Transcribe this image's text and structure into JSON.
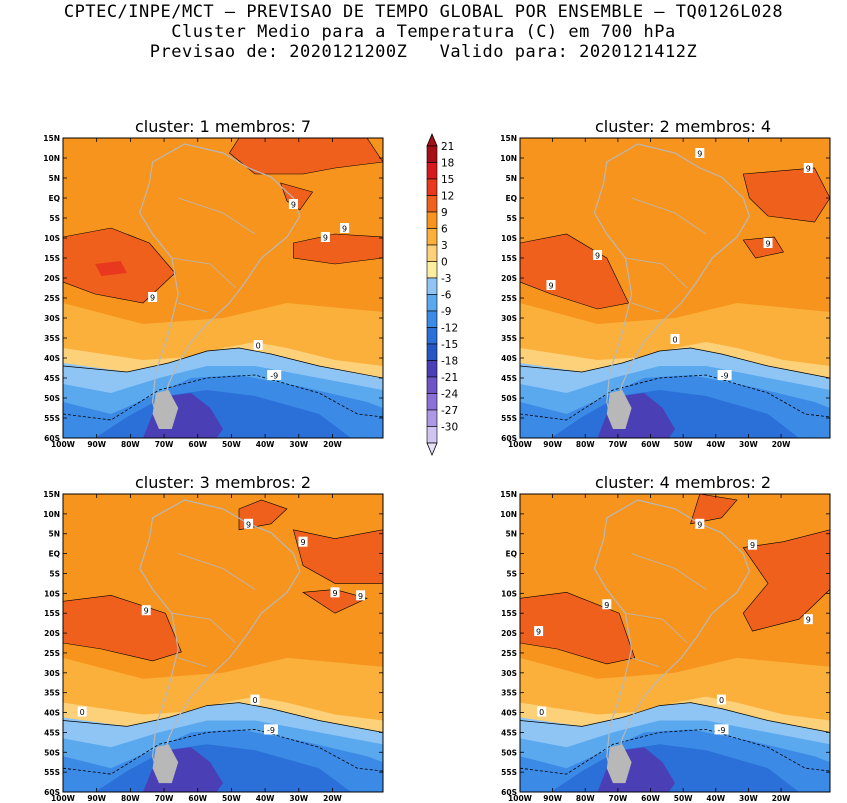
{
  "title": {
    "line1": "CPTEC/INPE/MCT — PREVISAO DE TEMPO GLOBAL POR ENSEMBLE — TQ0126L028",
    "line2": "Cluster Medio para a Temperatura (C) em 700 hPa",
    "line3": "Previsao de: 2020121200Z   Valido para: 2020121412Z"
  },
  "colorbar": {
    "labels": [
      "21",
      "18",
      "15",
      "12",
      "9",
      "6",
      "3",
      "0",
      "-3",
      "-6",
      "-9",
      "-12",
      "-15",
      "-18",
      "-21",
      "-24",
      "-27",
      "-30"
    ],
    "colors": [
      "#a50f15",
      "#d7191c",
      "#e8391e",
      "#f0601d",
      "#f7941d",
      "#fbb03b",
      "#fcd17a",
      "#fcee9e",
      "#8ec5f5",
      "#5aa8ee",
      "#3b8ae6",
      "#2b6fd8",
      "#2557c4",
      "#4a3fb5",
      "#6d55c8",
      "#8b72d8",
      "#ab98e6",
      "#cfc4f2"
    ],
    "arrow_top_color": "#a50f15",
    "arrow_bottom_color": "#e8e2f8"
  },
  "panels": [
    {
      "title": "cluster: 1   membros: 7",
      "contour_labels": [
        "9",
        "9",
        "9",
        "9",
        "0",
        "-9"
      ]
    },
    {
      "title": "cluster: 2   membros: 4",
      "contour_labels": [
        "9",
        "9",
        "9",
        "9",
        "9",
        "0",
        "-9"
      ]
    },
    {
      "title": "cluster: 3   membros: 2",
      "contour_labels": [
        "9",
        "9",
        "9",
        "9",
        "9",
        "0",
        "0",
        "-9"
      ]
    },
    {
      "title": "cluster: 4   membros: 2",
      "contour_labels": [
        "9",
        "9",
        "9",
        "9",
        "9",
        "0",
        "0",
        "-9"
      ]
    }
  ],
  "axes": {
    "lat_ticks": [
      "15N",
      "10N",
      "5N",
      "EQ",
      "5S",
      "10S",
      "15S",
      "20S",
      "25S",
      "30S",
      "35S",
      "40S",
      "45S",
      "50S",
      "55S",
      "60S"
    ],
    "lon_ticks": [
      "100W",
      "90W",
      "80W",
      "70W",
      "60W",
      "50W",
      "40W",
      "30W",
      "20W"
    ]
  },
  "map_colors": {
    "warm9": "#f0601d",
    "warm12": "#e8391e",
    "warm6": "#f7941d",
    "warm3": "#fbb03b",
    "c0": "#fcd17a",
    "cm3": "#8ec5f5",
    "cm6": "#5aa8ee",
    "cm9": "#3b8ae6",
    "cm12": "#2b6fd8",
    "cm15": "#4a3fb5",
    "cm18": "#6d55c8",
    "land": "#b8b8b8"
  }
}
